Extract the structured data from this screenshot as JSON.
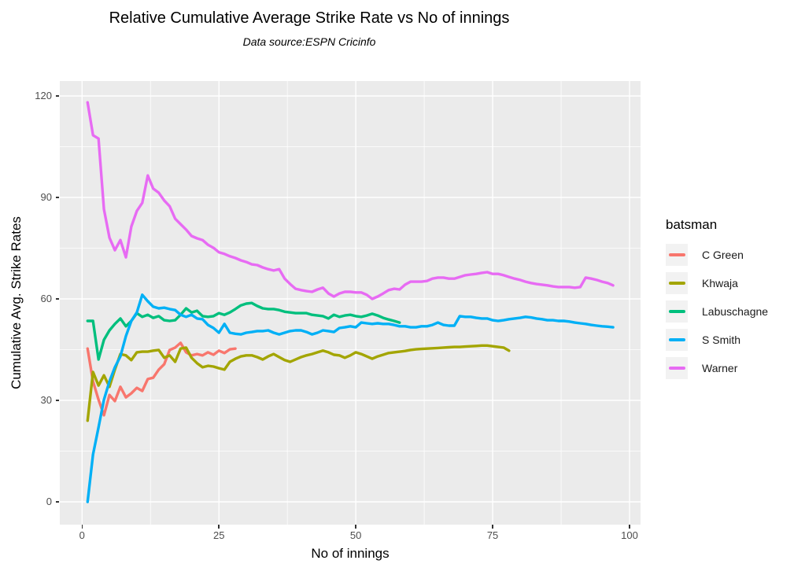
{
  "page": {
    "background": "#FFFFFF"
  },
  "chart_data": {
    "type": "line",
    "title": "Relative Cumulative Average Strike Rate vs No of innings",
    "subtitle": "Data source:ESPN Cricinfo",
    "xlabel": "No of innings",
    "ylabel": "Cumulative Avg. Strike Rates",
    "legend_title": "batsman",
    "legend_position": "right",
    "grid": true,
    "panel_background": "#EBEBEB",
    "grid_color": "#FFFFFF",
    "tick_color": "#333333",
    "tick_label_color": "#4D4D4D",
    "xlim": [
      -4.1,
      102
    ],
    "ylim": [
      -6.7,
      124.4
    ],
    "x_ticks": [
      0,
      25,
      50,
      75,
      100
    ],
    "y_ticks": [
      0,
      30,
      60,
      90,
      120
    ],
    "x_minor_ticks": [
      12.5,
      37.5,
      62.5,
      87.5
    ],
    "y_minor_ticks": [
      15,
      45,
      75,
      105
    ],
    "x_note": "each series starts at innings x_start and advances 1 innings per value",
    "series": [
      {
        "name": "C Green",
        "color": "#F8766D",
        "x_start": 1,
        "values": [
          45.3,
          35.6,
          30.2,
          25.6,
          31.6,
          29.8,
          34.0,
          30.9,
          32.1,
          33.7,
          32.8,
          36.3,
          36.7,
          39.1,
          40.7,
          44.9,
          45.6,
          47.0,
          44.2,
          43.3,
          43.7,
          43.3,
          44.2,
          43.5,
          44.7,
          44.0,
          45.1,
          45.3
        ]
      },
      {
        "name": "Khwaja",
        "color": "#A3A500",
        "x_start": 1,
        "values": [
          24.0,
          38.4,
          34.4,
          37.4,
          34.0,
          39.1,
          43.7,
          43.3,
          41.9,
          44.2,
          44.4,
          44.4,
          44.7,
          44.9,
          42.6,
          43.3,
          41.4,
          45.3,
          45.6,
          42.6,
          41.0,
          39.8,
          40.2,
          40.0,
          39.5,
          39.1,
          41.4,
          42.3,
          43.0,
          43.3,
          43.3,
          42.8,
          42.1,
          43.0,
          43.7,
          42.8,
          41.9,
          41.4,
          42.1,
          42.8,
          43.3,
          43.7,
          44.2,
          44.7,
          44.2,
          43.5,
          43.3,
          42.6,
          43.3,
          44.2,
          43.7,
          43.0,
          42.3,
          43.0,
          43.5,
          44.0,
          44.2,
          44.4,
          44.6,
          44.9,
          45.1,
          45.2,
          45.3,
          45.4,
          45.5,
          45.6,
          45.7,
          45.8,
          45.8,
          45.9,
          46.0,
          46.1,
          46.2,
          46.2,
          46.0,
          45.8,
          45.6,
          44.7
        ]
      },
      {
        "name": "Labuschagne",
        "color": "#00BF7D",
        "x_start": 1,
        "values": [
          53.5,
          53.5,
          42.1,
          47.9,
          50.7,
          52.6,
          54.2,
          51.9,
          53.5,
          55.8,
          54.7,
          55.3,
          54.4,
          54.9,
          53.7,
          53.5,
          53.7,
          55.3,
          57.2,
          56.0,
          56.5,
          54.9,
          54.7,
          54.9,
          55.8,
          55.3,
          56.0,
          57.0,
          58.1,
          58.6,
          58.8,
          57.9,
          57.2,
          57.0,
          57.0,
          56.7,
          56.2,
          56.0,
          55.8,
          55.8,
          55.8,
          55.3,
          55.1,
          54.9,
          54.2,
          55.3,
          54.7,
          55.1,
          55.3,
          54.9,
          54.7,
          55.1,
          55.6,
          55.1,
          54.4,
          53.9,
          53.5,
          53.0
        ]
      },
      {
        "name": "S Smith",
        "color": "#00B0F6",
        "x_start": 1,
        "values": [
          0.0,
          14.0,
          22.0,
          30.2,
          35.6,
          39.8,
          43.0,
          49.0,
          53.5,
          56.0,
          61.2,
          59.3,
          57.7,
          57.2,
          57.4,
          57.0,
          56.7,
          55.3,
          54.7,
          55.3,
          54.2,
          54.0,
          52.3,
          51.4,
          50.0,
          52.6,
          50.0,
          49.7,
          49.5,
          50.0,
          50.2,
          50.5,
          50.5,
          50.7,
          50.0,
          49.5,
          50.0,
          50.5,
          50.7,
          50.7,
          50.2,
          49.5,
          50.0,
          50.7,
          50.5,
          50.2,
          51.4,
          51.6,
          51.9,
          51.6,
          53.0,
          52.8,
          52.6,
          52.8,
          52.6,
          52.6,
          52.3,
          51.9,
          51.9,
          51.6,
          51.6,
          51.9,
          51.9,
          52.3,
          53.0,
          52.3,
          52.1,
          52.1,
          54.9,
          54.7,
          54.7,
          54.4,
          54.2,
          54.2,
          53.7,
          53.5,
          53.7,
          54.0,
          54.2,
          54.4,
          54.7,
          54.5,
          54.2,
          54.0,
          53.7,
          53.7,
          53.5,
          53.5,
          53.3,
          53.0,
          52.8,
          52.6,
          52.3,
          52.1,
          51.9,
          51.8,
          51.6
        ]
      },
      {
        "name": "Warner",
        "color": "#E76BF3",
        "x_start": 1,
        "values": [
          118.1,
          108.4,
          107.4,
          86.5,
          78.1,
          74.4,
          77.4,
          72.3,
          81.4,
          86.0,
          88.4,
          96.5,
          92.6,
          91.4,
          89.1,
          87.4,
          83.7,
          82.1,
          80.5,
          78.6,
          77.9,
          77.4,
          76.0,
          75.1,
          73.8,
          73.3,
          72.6,
          72.1,
          71.4,
          70.9,
          70.2,
          70.0,
          69.3,
          68.8,
          68.4,
          68.8,
          66.0,
          64.4,
          63.0,
          62.6,
          62.3,
          62.1,
          62.8,
          63.3,
          61.6,
          60.7,
          61.6,
          62.1,
          62.1,
          61.9,
          61.9,
          61.2,
          60.0,
          60.7,
          61.6,
          62.6,
          63.0,
          62.8,
          64.2,
          65.1,
          65.1,
          65.1,
          65.3,
          66.0,
          66.3,
          66.3,
          66.0,
          66.0,
          66.5,
          67.0,
          67.2,
          67.4,
          67.7,
          67.9,
          67.4,
          67.4,
          67.0,
          66.5,
          66.0,
          65.6,
          65.1,
          64.7,
          64.4,
          64.2,
          64.0,
          63.7,
          63.5,
          63.5,
          63.5,
          63.3,
          63.5,
          66.3,
          66.0,
          65.6,
          65.1,
          64.7,
          64.0
        ]
      }
    ]
  }
}
